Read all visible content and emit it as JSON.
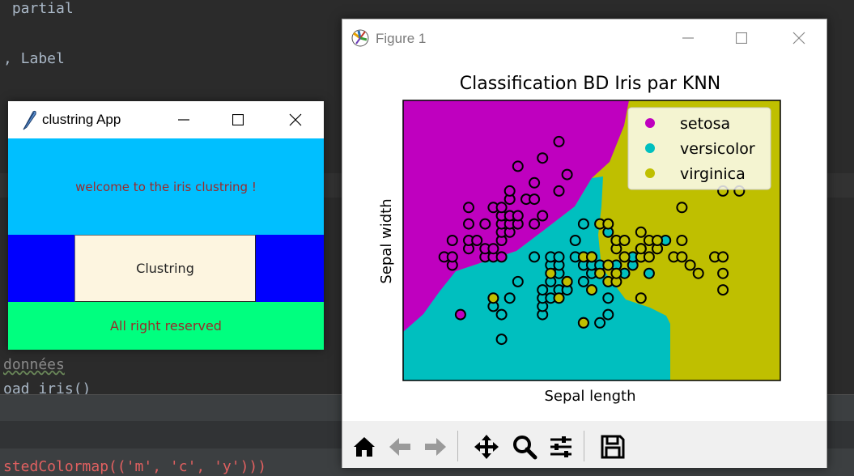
{
  "editor": {
    "lines": [
      {
        "text": " partial"
      },
      {
        "text": ", Label"
      },
      {
        "text": "données"
      },
      {
        "text": "oad_iris()"
      }
    ],
    "bottom_code": "stedColormap(('m', 'c', 'y')))"
  },
  "tk_app": {
    "title": "clustring App",
    "welcome_text": "welcome to the iris clustring !",
    "button_label": "Clustring",
    "footer_text": "All right reserved",
    "colors": {
      "header": "#00bfff",
      "middle": "#0000ff",
      "button": "#fdf5e0",
      "footer": "#00ff7f",
      "text": "#9a2b2b"
    }
  },
  "figure": {
    "title": "Figure 1",
    "toolbar": [
      {
        "name": "home-icon",
        "tooltip": ""
      },
      {
        "name": "back-icon",
        "tooltip": ""
      },
      {
        "name": "forward-icon",
        "tooltip": ""
      },
      {
        "name": "pan-icon",
        "tooltip": ""
      },
      {
        "name": "zoom-icon",
        "tooltip": ""
      },
      {
        "name": "configure-subplots-icon",
        "tooltip": ""
      },
      {
        "name": "save-icon",
        "tooltip": ""
      }
    ]
  },
  "chart_data": {
    "type": "scatter",
    "title": "Classification BD Iris par KNN",
    "xlabel": "Sepal length",
    "ylabel": "Sepal width",
    "xlim": [
      3.8,
      8.4
    ],
    "ylim": [
      1.5,
      4.9
    ],
    "grid": false,
    "legend_position": "top-right",
    "background_regions": "decision regions: magenta (setosa) upper-left, cyan (versicolor) lower-middle, olive (virginica) right",
    "colors": {
      "setosa": "#bf00bf",
      "versicolor": "#00bfbf",
      "virginica": "#bfbf00"
    },
    "series": [
      {
        "name": "setosa",
        "color": "#bf00bf",
        "points": [
          [
            4.3,
            3.0
          ],
          [
            4.4,
            2.9
          ],
          [
            4.4,
            3.0
          ],
          [
            4.4,
            3.2
          ],
          [
            4.5,
            2.3
          ],
          [
            4.6,
            3.1
          ],
          [
            4.6,
            3.2
          ],
          [
            4.6,
            3.4
          ],
          [
            4.6,
            3.6
          ],
          [
            4.7,
            3.2
          ],
          [
            4.8,
            3.0
          ],
          [
            4.8,
            3.1
          ],
          [
            4.8,
            3.4
          ],
          [
            4.9,
            3.0
          ],
          [
            4.9,
            3.1
          ],
          [
            4.9,
            3.6
          ],
          [
            5.0,
            3.0
          ],
          [
            5.0,
            3.2
          ],
          [
            5.0,
            3.3
          ],
          [
            5.0,
            3.4
          ],
          [
            5.0,
            3.5
          ],
          [
            5.0,
            3.6
          ],
          [
            5.1,
            3.3
          ],
          [
            5.1,
            3.4
          ],
          [
            5.1,
            3.5
          ],
          [
            5.1,
            3.7
          ],
          [
            5.1,
            3.8
          ],
          [
            5.2,
            3.4
          ],
          [
            5.2,
            3.5
          ],
          [
            5.2,
            4.1
          ],
          [
            5.3,
            3.7
          ],
          [
            5.4,
            3.4
          ],
          [
            5.4,
            3.7
          ],
          [
            5.4,
            3.9
          ],
          [
            5.5,
            3.5
          ],
          [
            5.5,
            4.2
          ],
          [
            5.7,
            3.8
          ],
          [
            5.7,
            4.4
          ],
          [
            5.8,
            4.0
          ]
        ]
      },
      {
        "name": "versicolor",
        "color": "#00bfbf",
        "points": [
          [
            4.9,
            2.4
          ],
          [
            5.0,
            2.0
          ],
          [
            5.0,
            2.3
          ],
          [
            5.1,
            2.5
          ],
          [
            5.2,
            2.7
          ],
          [
            5.4,
            3.0
          ],
          [
            5.5,
            2.3
          ],
          [
            5.5,
            2.4
          ],
          [
            5.5,
            2.5
          ],
          [
            5.5,
            2.6
          ],
          [
            5.6,
            2.5
          ],
          [
            5.6,
            2.7
          ],
          [
            5.6,
            2.9
          ],
          [
            5.6,
            3.0
          ],
          [
            5.7,
            2.6
          ],
          [
            5.7,
            2.8
          ],
          [
            5.7,
            2.9
          ],
          [
            5.7,
            3.0
          ],
          [
            5.8,
            2.6
          ],
          [
            5.8,
            2.7
          ],
          [
            5.9,
            3.0
          ],
          [
            5.9,
            3.2
          ],
          [
            6.0,
            2.2
          ],
          [
            6.0,
            2.7
          ],
          [
            6.0,
            2.9
          ],
          [
            6.0,
            3.4
          ],
          [
            6.1,
            2.8
          ],
          [
            6.1,
            2.9
          ],
          [
            6.1,
            3.0
          ],
          [
            6.2,
            2.2
          ],
          [
            6.2,
            2.9
          ],
          [
            6.3,
            2.3
          ],
          [
            6.3,
            2.5
          ],
          [
            6.3,
            3.3
          ],
          [
            6.4,
            2.9
          ],
          [
            6.4,
            3.2
          ],
          [
            6.5,
            2.8
          ],
          [
            6.6,
            2.9
          ],
          [
            6.6,
            3.0
          ],
          [
            6.7,
            3.0
          ],
          [
            6.7,
            3.1
          ],
          [
            6.8,
            2.8
          ],
          [
            6.9,
            3.1
          ],
          [
            7.0,
            3.2
          ]
        ]
      },
      {
        "name": "virginica",
        "color": "#bfbf00",
        "points": [
          [
            4.9,
            2.5
          ],
          [
            5.6,
            2.8
          ],
          [
            5.7,
            2.5
          ],
          [
            5.8,
            2.7
          ],
          [
            6.0,
            2.2
          ],
          [
            6.0,
            3.0
          ],
          [
            6.1,
            2.6
          ],
          [
            6.1,
            3.0
          ],
          [
            6.2,
            2.8
          ],
          [
            6.2,
            3.4
          ],
          [
            6.3,
            2.7
          ],
          [
            6.3,
            2.9
          ],
          [
            6.3,
            3.4
          ],
          [
            6.4,
            2.7
          ],
          [
            6.4,
            2.8
          ],
          [
            6.4,
            3.1
          ],
          [
            6.4,
            3.2
          ],
          [
            6.5,
            3.0
          ],
          [
            6.5,
            3.2
          ],
          [
            6.7,
            2.5
          ],
          [
            6.7,
            3.0
          ],
          [
            6.7,
            3.1
          ],
          [
            6.7,
            3.3
          ],
          [
            6.8,
            3.0
          ],
          [
            6.8,
            3.2
          ],
          [
            6.9,
            3.1
          ],
          [
            6.9,
            3.2
          ],
          [
            7.1,
            3.0
          ],
          [
            7.2,
            3.0
          ],
          [
            7.2,
            3.2
          ],
          [
            7.2,
            3.6
          ],
          [
            7.3,
            2.9
          ],
          [
            7.4,
            2.8
          ],
          [
            7.6,
            3.0
          ],
          [
            7.7,
            2.6
          ],
          [
            7.7,
            2.8
          ],
          [
            7.7,
            3.0
          ],
          [
            7.7,
            3.8
          ],
          [
            7.9,
            3.8
          ]
        ]
      }
    ]
  }
}
